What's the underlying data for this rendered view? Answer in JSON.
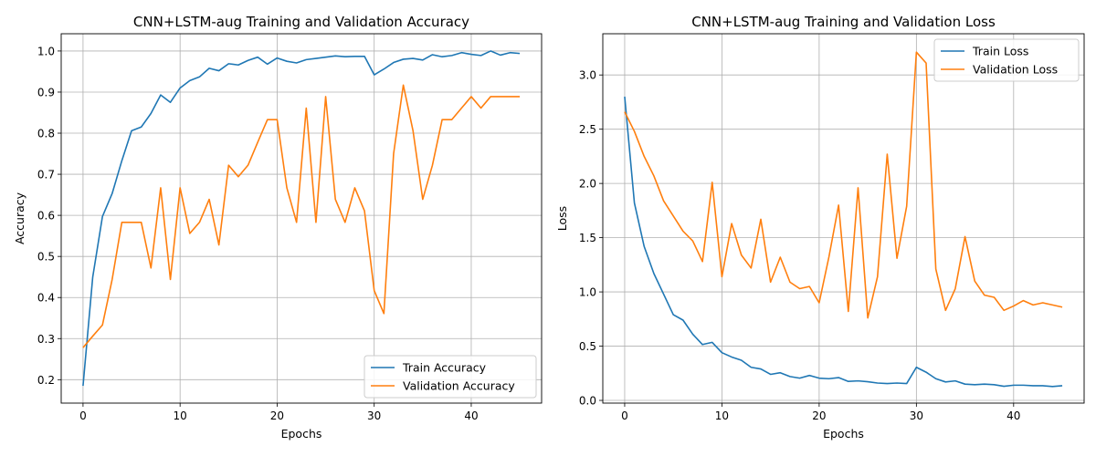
{
  "chart_data": [
    {
      "type": "line",
      "title": "CNN+LSTM-aug Training and Validation Accuracy",
      "xlabel": "Epochs",
      "ylabel": "Accuracy",
      "xlim": [
        -2.25,
        47.25
      ],
      "ylim": [
        0.143,
        1.042
      ],
      "xticks": [
        0,
        10,
        20,
        30,
        40
      ],
      "yticks": [
        0.2,
        0.3,
        0.4,
        0.5,
        0.6,
        0.7,
        0.8,
        0.9,
        1.0
      ],
      "ytick_labels": [
        "0.2",
        "0.3",
        "0.4",
        "0.5",
        "0.6",
        "0.7",
        "0.8",
        "0.9",
        "1.0"
      ],
      "grid": true,
      "legend_position": "bottom-right",
      "series": [
        {
          "name": "Train Accuracy",
          "color": "#1f77b4",
          "values": [
            0.185,
            0.45,
            0.597,
            0.653,
            0.733,
            0.806,
            0.815,
            0.848,
            0.893,
            0.875,
            0.91,
            0.928,
            0.937,
            0.958,
            0.952,
            0.969,
            0.966,
            0.977,
            0.985,
            0.968,
            0.983,
            0.975,
            0.971,
            0.979,
            0.982,
            0.985,
            0.988,
            0.986,
            0.987,
            0.987,
            0.942,
            0.956,
            0.972,
            0.98,
            0.982,
            0.978,
            0.991,
            0.986,
            0.989,
            0.996,
            0.992,
            0.989,
            1.0,
            0.99,
            0.996,
            0.994
          ]
        },
        {
          "name": "Validation Accuracy",
          "color": "#ff7f0e",
          "values": [
            0.278,
            0.306,
            0.333,
            0.444,
            0.583,
            0.583,
            0.583,
            0.472,
            0.667,
            0.444,
            0.667,
            0.556,
            0.583,
            0.639,
            0.528,
            0.722,
            0.694,
            0.722,
            0.778,
            0.833,
            0.833,
            0.667,
            0.583,
            0.861,
            0.583,
            0.889,
            0.639,
            0.583,
            0.667,
            0.611,
            0.417,
            0.361,
            0.75,
            0.917,
            0.806,
            0.639,
            0.722,
            0.833,
            0.833,
            0.861,
            0.889,
            0.861,
            0.889,
            0.889,
            0.889,
            0.889
          ]
        }
      ]
    },
    {
      "type": "line",
      "title": "CNN+LSTM-aug Training and Validation Loss",
      "xlabel": "Epochs",
      "ylabel": "Loss",
      "xlim": [
        -2.25,
        47.25
      ],
      "ylim": [
        -0.025,
        3.38
      ],
      "xticks": [
        0,
        10,
        20,
        30,
        40
      ],
      "yticks": [
        0.0,
        0.5,
        1.0,
        1.5,
        2.0,
        2.5,
        3.0
      ],
      "ytick_labels": [
        "0.0",
        "0.5",
        "1.0",
        "1.5",
        "2.0",
        "2.5",
        "3.0"
      ],
      "grid": true,
      "legend_position": "top-right",
      "series": [
        {
          "name": "Train Loss",
          "color": "#1f77b4",
          "values": [
            2.8,
            1.82,
            1.42,
            1.17,
            0.98,
            0.79,
            0.74,
            0.61,
            0.515,
            0.535,
            0.44,
            0.4,
            0.37,
            0.305,
            0.29,
            0.24,
            0.255,
            0.22,
            0.205,
            0.23,
            0.205,
            0.2,
            0.21,
            0.175,
            0.18,
            0.172,
            0.16,
            0.155,
            0.16,
            0.155,
            0.305,
            0.26,
            0.2,
            0.17,
            0.18,
            0.15,
            0.145,
            0.15,
            0.145,
            0.13,
            0.14,
            0.14,
            0.135,
            0.135,
            0.128,
            0.135
          ]
        },
        {
          "name": "Validation Loss",
          "color": "#ff7f0e",
          "values": [
            2.66,
            2.48,
            2.25,
            2.07,
            1.84,
            1.7,
            1.56,
            1.47,
            1.28,
            2.01,
            1.14,
            1.63,
            1.34,
            1.22,
            1.67,
            1.09,
            1.32,
            1.09,
            1.03,
            1.05,
            0.9,
            1.32,
            1.8,
            0.82,
            1.96,
            0.76,
            1.14,
            2.27,
            1.31,
            1.79,
            3.21,
            3.11,
            1.21,
            0.83,
            1.03,
            1.51,
            1.1,
            0.97,
            0.95,
            0.83,
            0.87,
            0.92,
            0.88,
            0.9,
            0.88,
            0.86
          ]
        }
      ]
    }
  ]
}
